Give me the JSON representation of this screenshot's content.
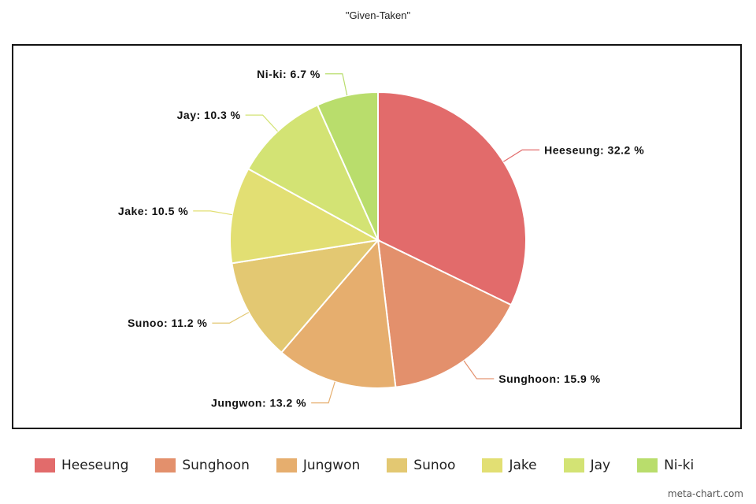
{
  "chart_data": {
    "type": "pie",
    "title": "\"Given-Taken\"",
    "slices": [
      {
        "label": "Heeseung",
        "value": 32.2,
        "color": "#e26b6b",
        "display": "Heeseung: 32.2 %"
      },
      {
        "label": "Sunghoon",
        "value": 15.9,
        "color": "#e3906c",
        "display": "Sunghoon: 15.9 %"
      },
      {
        "label": "Jungwon",
        "value": 13.2,
        "color": "#e6ae6e",
        "display": "Jungwon: 13.2 %"
      },
      {
        "label": "Sunoo",
        "value": 11.2,
        "color": "#e3c872",
        "display": "Sunoo: 11.2 %"
      },
      {
        "label": "Jake",
        "value": 10.5,
        "color": "#e2df73",
        "display": "Jake: 10.5 %"
      },
      {
        "label": "Jay",
        "value": 10.3,
        "color": "#d3e374",
        "display": "Jay: 10.3 %"
      },
      {
        "label": "Ni-ki",
        "value": 6.7,
        "color": "#b9dd6c",
        "display": "Ni-ki: 6.7 %"
      }
    ],
    "legend_position": "bottom"
  },
  "watermark": "meta-chart.com"
}
